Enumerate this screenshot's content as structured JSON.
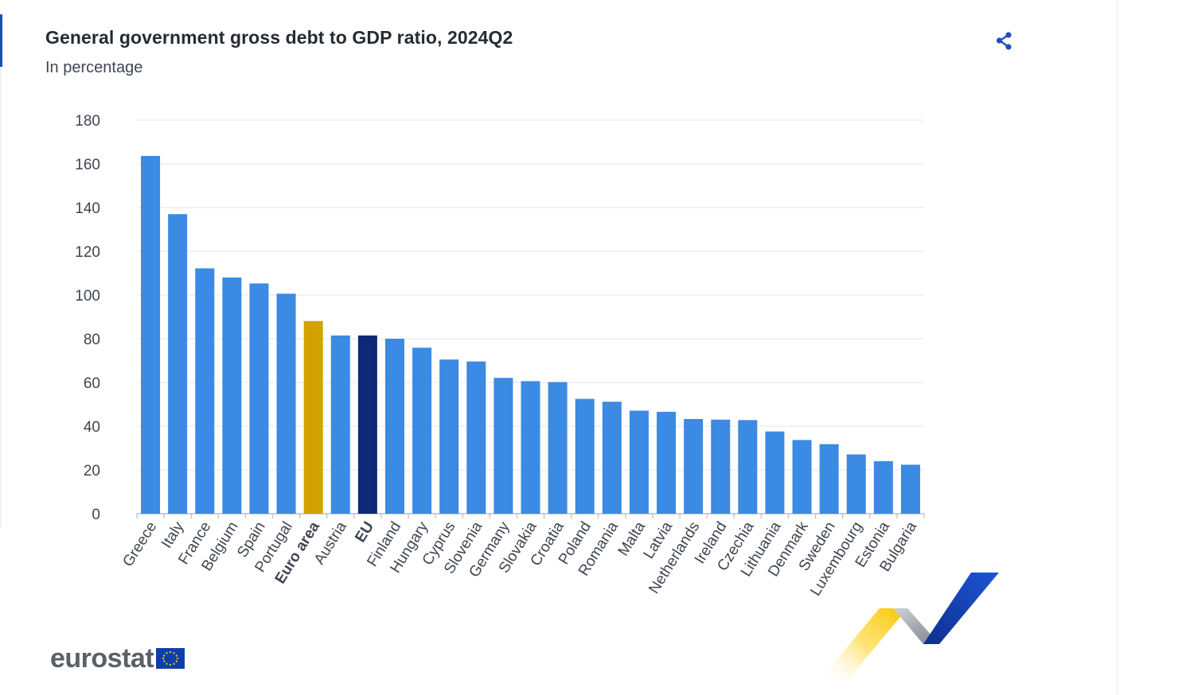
{
  "title": "General government gross debt to GDP ratio, 2024Q2",
  "subtitle": "In percentage",
  "share_icon": "share-icon",
  "logo": {
    "text": "eurostat"
  },
  "colors": {
    "country_bar": "#3b8ae4",
    "euro_area_bar": "#d3a100",
    "eu_bar": "#0c2a76",
    "grid": "#e3e6ea",
    "axis_text": "#3f4550",
    "share_icon": "#1e4fb8"
  },
  "chart_data": {
    "type": "bar",
    "title": "General government gross debt to GDP ratio, 2024Q2",
    "subtitle": "In percentage",
    "xlabel": "",
    "ylabel": "",
    "ylim": [
      0,
      180
    ],
    "yticks": [
      0,
      20,
      40,
      60,
      80,
      100,
      120,
      140,
      160,
      180
    ],
    "grid": true,
    "legend": "none",
    "categories": [
      "Greece",
      "Italy",
      "France",
      "Belgium",
      "Spain",
      "Portugal",
      "Euro area",
      "Austria",
      "EU",
      "Finland",
      "Hungary",
      "Cyprus",
      "Slovenia",
      "Germany",
      "Slovakia",
      "Croatia",
      "Poland",
      "Romania",
      "Malta",
      "Latvia",
      "Netherlands",
      "Ireland",
      "Czechia",
      "Lithuania",
      "Denmark",
      "Sweden",
      "Luxembourg",
      "Estonia",
      "Bulgaria"
    ],
    "values": [
      163.6,
      137.0,
      112.2,
      108.0,
      105.3,
      100.6,
      88.1,
      81.5,
      81.5,
      80.0,
      75.9,
      70.5,
      69.6,
      62.1,
      60.6,
      60.2,
      52.5,
      51.2,
      47.1,
      46.6,
      43.3,
      43.0,
      42.8,
      37.6,
      33.7,
      31.8,
      27.1,
      24.0,
      22.4
    ],
    "highlight": {
      "Euro area": "euro_area_bar",
      "EU": "eu_bar"
    },
    "bold_labels": [
      "Euro area",
      "EU"
    ]
  }
}
